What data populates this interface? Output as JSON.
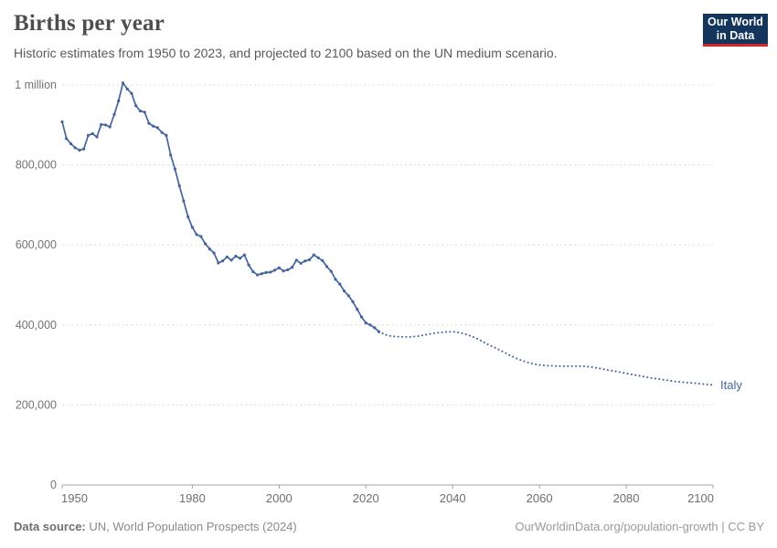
{
  "header": {
    "logo": {
      "line1": "Our World",
      "line2": "in Data"
    }
  },
  "footer": {
    "data_source_label": "Data source:",
    "data_source_value": "UN, World Population Prospects (2024)",
    "credit": "OurWorldinData.org/population-growth | CC BY"
  },
  "chart_data": {
    "type": "line",
    "title": "Births per year",
    "subtitle": "Historic estimates from 1950 to 2023, and projected to 2100 based on the UN medium scenario.",
    "entity": "Italy",
    "color": "#4464a0",
    "grid": true,
    "legend_position": "line-end-label",
    "xlabel": "",
    "ylabel": "",
    "xlim": [
      1950,
      2100
    ],
    "ylim": [
      0,
      1000000
    ],
    "unit_multiplier": 1000,
    "x_ticks": [
      1950,
      1980,
      2000,
      2020,
      2040,
      2060,
      2080,
      2100
    ],
    "y_ticks": [
      {
        "value": 0,
        "label": "0"
      },
      {
        "value": 200000,
        "label": "200,000"
      },
      {
        "value": 400000,
        "label": "400,000"
      },
      {
        "value": 600000,
        "label": "600,000"
      },
      {
        "value": 800000,
        "label": "800,000"
      },
      {
        "value": 1000000,
        "label": "1 million"
      }
    ],
    "series": [
      {
        "name": "Italy — historic estimates",
        "style": "solid",
        "markers": true,
        "start_year": 1950,
        "end_year": 2023,
        "values_thousands": [
          908,
          866,
          853,
          843,
          837,
          840,
          874,
          878,
          870,
          901,
          900,
          895,
          926,
          960,
          1005,
          990,
          979,
          948,
          935,
          932,
          904,
          897,
          893,
          881,
          874,
          825,
          790,
          748,
          710,
          670,
          644,
          626,
          621,
          603,
          590,
          580,
          555,
          560,
          570,
          562,
          572,
          567,
          575,
          550,
          533,
          525,
          528,
          531,
          532,
          537,
          543,
          535,
          538,
          544,
          562,
          554,
          560,
          563,
          575,
          568,
          561,
          546,
          534,
          514,
          502,
          485,
          473,
          458,
          439,
          420,
          405,
          400,
          393,
          383
        ]
      },
      {
        "name": "Italy — UN medium scenario projection",
        "style": "dotted",
        "markers": false,
        "start_year": 2023,
        "end_year": 2100,
        "values_thousands": [
          383,
          378,
          374,
          372,
          371,
          370,
          370,
          370,
          371,
          372,
          374,
          376,
          378,
          380,
          381,
          382,
          383,
          383,
          382,
          380,
          377,
          373,
          369,
          364,
          358,
          352,
          347,
          342,
          336,
          331,
          325,
          320,
          315,
          311,
          307,
          304,
          302,
          300,
          299,
          298,
          298,
          297,
          297,
          297,
          297,
          297,
          297,
          297,
          296,
          295,
          293,
          291,
          289,
          287,
          285,
          283,
          281,
          279,
          277,
          275,
          273,
          271,
          269,
          267,
          266,
          264,
          262,
          261,
          259,
          258,
          257,
          256,
          255,
          254,
          253,
          252,
          251,
          250
        ]
      }
    ]
  }
}
